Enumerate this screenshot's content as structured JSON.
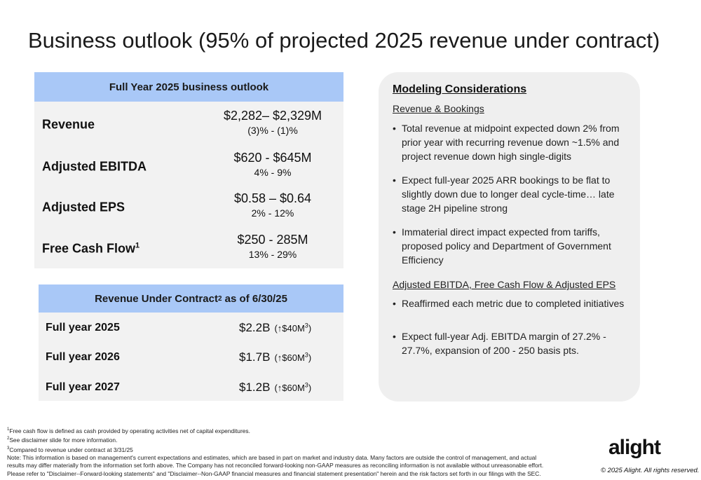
{
  "title": "Business outlook (95% of projected 2025 revenue under contract)",
  "outlook": {
    "header": "Full Year 2025 business outlook",
    "rows": [
      {
        "label": "Revenue",
        "sup": "",
        "value": "$2,282– $2,329M",
        "change": "(3)% - (1)%"
      },
      {
        "label": "Adjusted EBITDA",
        "sup": "",
        "value": "$620 - $645M",
        "change": "4% - 9%"
      },
      {
        "label": "Adjusted EPS",
        "sup": "",
        "value": "$0.58 – $0.64",
        "change": "2% - 12%"
      },
      {
        "label": "Free Cash Flow",
        "sup": "1",
        "value": "$250 - 285M",
        "change": "13% - 29%"
      }
    ]
  },
  "revenue_under_contract": {
    "header_pre": "Revenue Under Contract",
    "header_sup": "2",
    "header_post": " as of 6/30/25",
    "rows": [
      {
        "label": "Full year 2025",
        "amount": "$2.2B",
        "change": "(↑$40M",
        "sup": "3",
        "close": ")"
      },
      {
        "label": "Full year 2026",
        "amount": "$1.7B",
        "change": "(↑$60M",
        "sup": "3",
        "close": ")"
      },
      {
        "label": "Full year 2027",
        "amount": "$1.2B",
        "change": "(↑$60M",
        "sup": "3",
        "close": ")"
      }
    ]
  },
  "modeling": {
    "title": "Modeling Considerations",
    "section1": "Revenue & Bookings",
    "bullets1": [
      "Total revenue at midpoint expected down 2% from prior year with recurring revenue down ~1.5% and project revenue down high single-digits",
      "Expect full-year 2025 ARR bookings to be flat to slightly down due to longer deal cycle-time… late stage 2H pipeline strong",
      "Immaterial direct impact expected from tariffs, proposed policy and Department of Government Efficiency"
    ],
    "section2": "Adjusted EBITDA, Free Cash Flow & Adjusted EPS",
    "bullets2": [
      "Reaffirmed each metric due to completed initiatives",
      "Expect full-year Adj. EBITDA margin of 27.2% - 27.7%, expansion of 200 - 250 basis pts."
    ]
  },
  "footnotes": {
    "f1_sup": "1",
    "f1": "Free cash flow is defined as cash provided by operating activities net of capital expenditures.",
    "f2_sup": "2",
    "f2": "See disclaimer slide for more information.",
    "f3_sup": "3",
    "f3": "Compared to revenue under contract at 3/31/25",
    "note1": "Note: This information is based on management's current expectations and estimates, which are based in part on market and industry data. Many factors are outside the control of management, and actual",
    "note2": "results may differ materially from the information set forth above. The Company has not reconciled forward-looking non-GAAP measures as reconciling information is not available without unreasonable effort.",
    "note3": "Please refer to \"Disclaimer--Forward-looking statements\" and \"Disclaimer--Non-GAAP financial measures and financial statement presentation\" herein and the risk factors set forth in our filings with the SEC."
  },
  "logo": "alight",
  "copyright": "© 2025 Alight. All rights reserved."
}
